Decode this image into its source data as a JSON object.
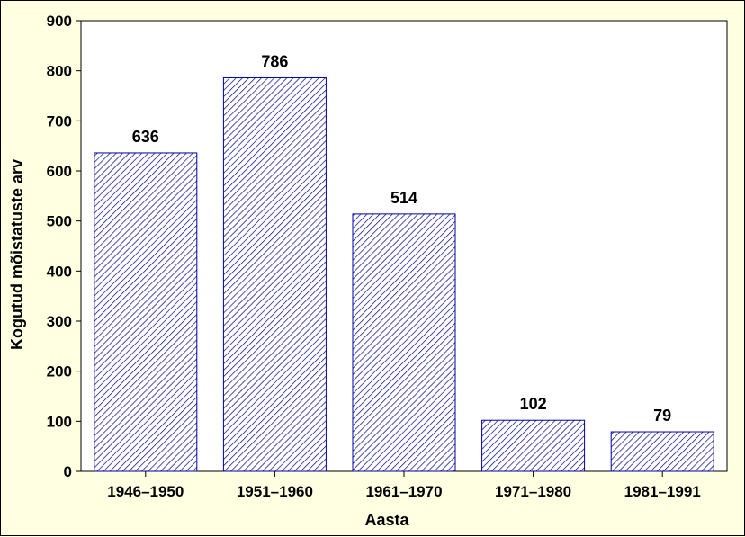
{
  "chart_data": {
    "type": "bar",
    "categories": [
      "1946–1950",
      "1951–1960",
      "1961–1970",
      "1971–1980",
      "1981–1991"
    ],
    "values": [
      636,
      786,
      514,
      102,
      79
    ],
    "data_labels": [
      "636",
      "786",
      "514",
      "102",
      "79"
    ],
    "title": "",
    "xlabel": "Aasta",
    "ylabel": "Kogutud mõistatuste arv",
    "ylim": [
      0,
      900
    ],
    "yticks": [
      0,
      100,
      200,
      300,
      400,
      500,
      600,
      700,
      800,
      900
    ],
    "grid": false,
    "legend": "none",
    "colors": {
      "background": "#ffffe1",
      "plot_area": "#ffffff",
      "bar_fill": "#ffffff",
      "bar_hatch": "#00008b",
      "bar_border": "#0000a0"
    }
  }
}
